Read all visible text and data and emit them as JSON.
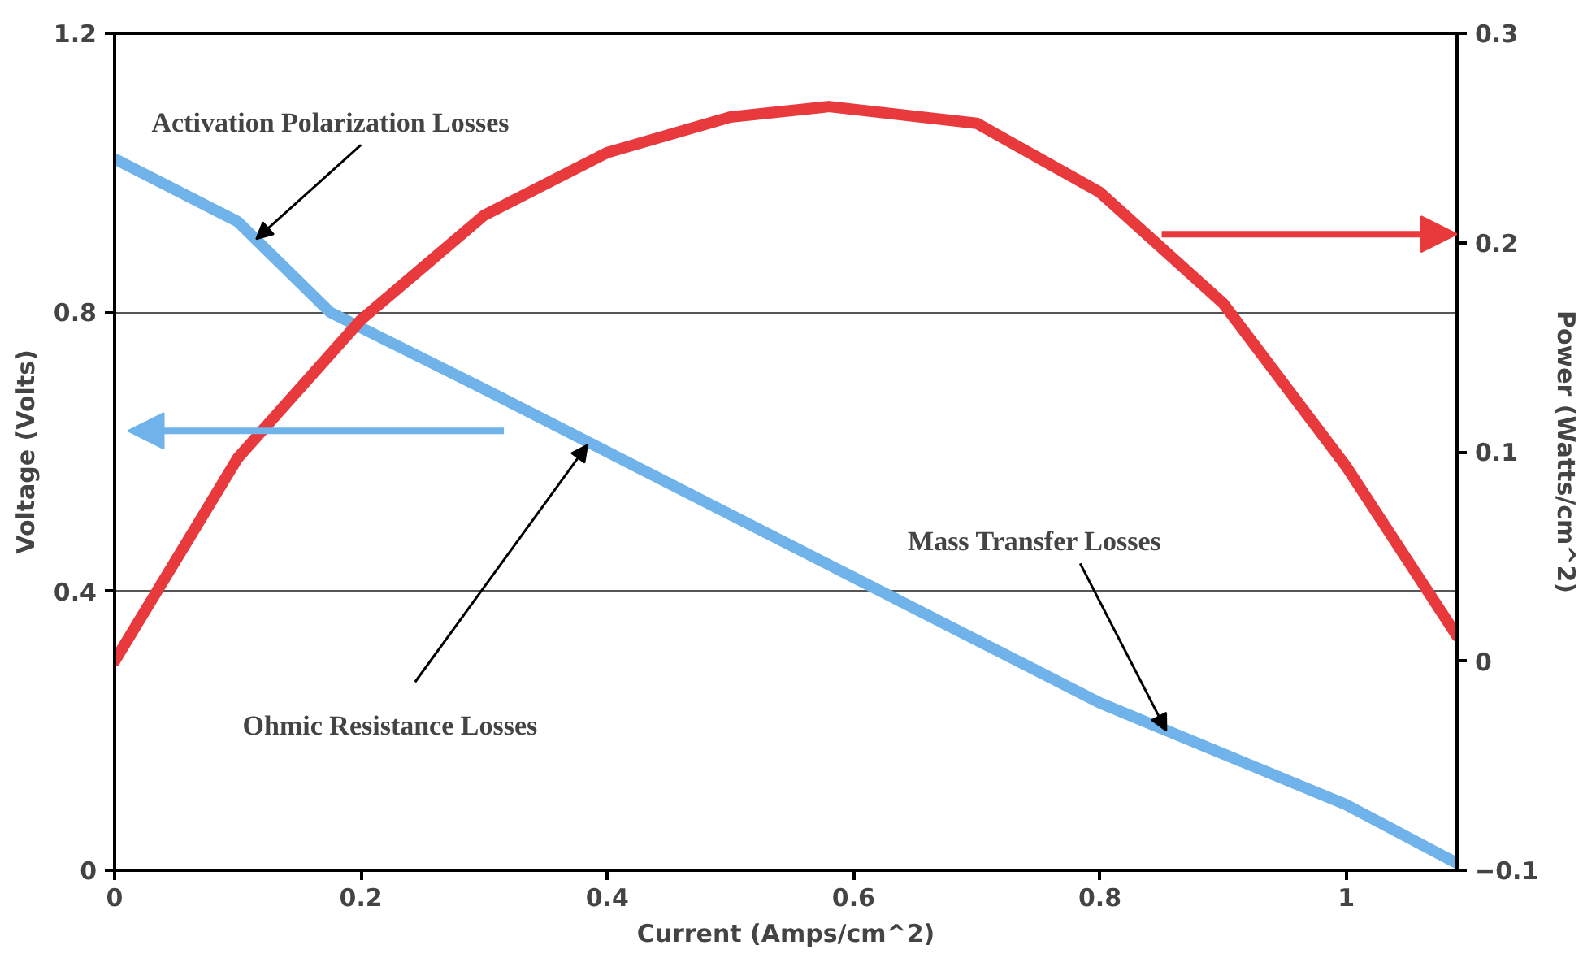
{
  "chart_data": {
    "type": "line",
    "xlabel": "Current (Amps/cm^2)",
    "ylabel": "Voltage (Volts)",
    "y2label": "Power (Watts/cm^2)",
    "xlim": [
      0,
      1.09
    ],
    "xticks": [
      0,
      0.2,
      0.4,
      0.6,
      0.8,
      1
    ],
    "ylim": [
      0,
      1.2
    ],
    "yticks": [
      0,
      0.4,
      0.8,
      1.2
    ],
    "y2lim": [
      -0.1,
      0.3
    ],
    "y2ticks": [
      -0.1,
      0,
      0.1,
      0.2,
      0.3
    ],
    "grid": "y",
    "marker": "none",
    "line_style": "solid",
    "series": [
      {
        "color": "#6fb3ea",
        "x": [
          0,
          0.1,
          0.175,
          0.3,
          0.4,
          0.6,
          0.8,
          1.0,
          1.09
        ],
        "values": [
          1.02,
          0.93,
          0.8,
          0.69,
          0.6,
          0.42,
          0.24,
          0.094,
          0.01
        ]
      },
      {
        "color": "#e8393d",
        "axis": "y2",
        "x": [
          0,
          0.1,
          0.2,
          0.3,
          0.4,
          0.5,
          0.58,
          0.7,
          0.8,
          0.9,
          1.0,
          1.09
        ],
        "values": [
          0,
          0.097,
          0.163,
          0.213,
          0.243,
          0.26,
          0.265,
          0.257,
          0.224,
          0.171,
          0.093,
          0.012
        ]
      }
    ],
    "annotations": [
      {
        "text": "Activation Polarization Losses",
        "x": 0.115,
        "y": 0.905
      },
      {
        "text": "Ohmic Resistance Losses",
        "x": 0.384,
        "y": 0.61
      },
      {
        "text": "Mass Transfer Losses",
        "x": 0.854,
        "y": 0.2
      }
    ]
  }
}
